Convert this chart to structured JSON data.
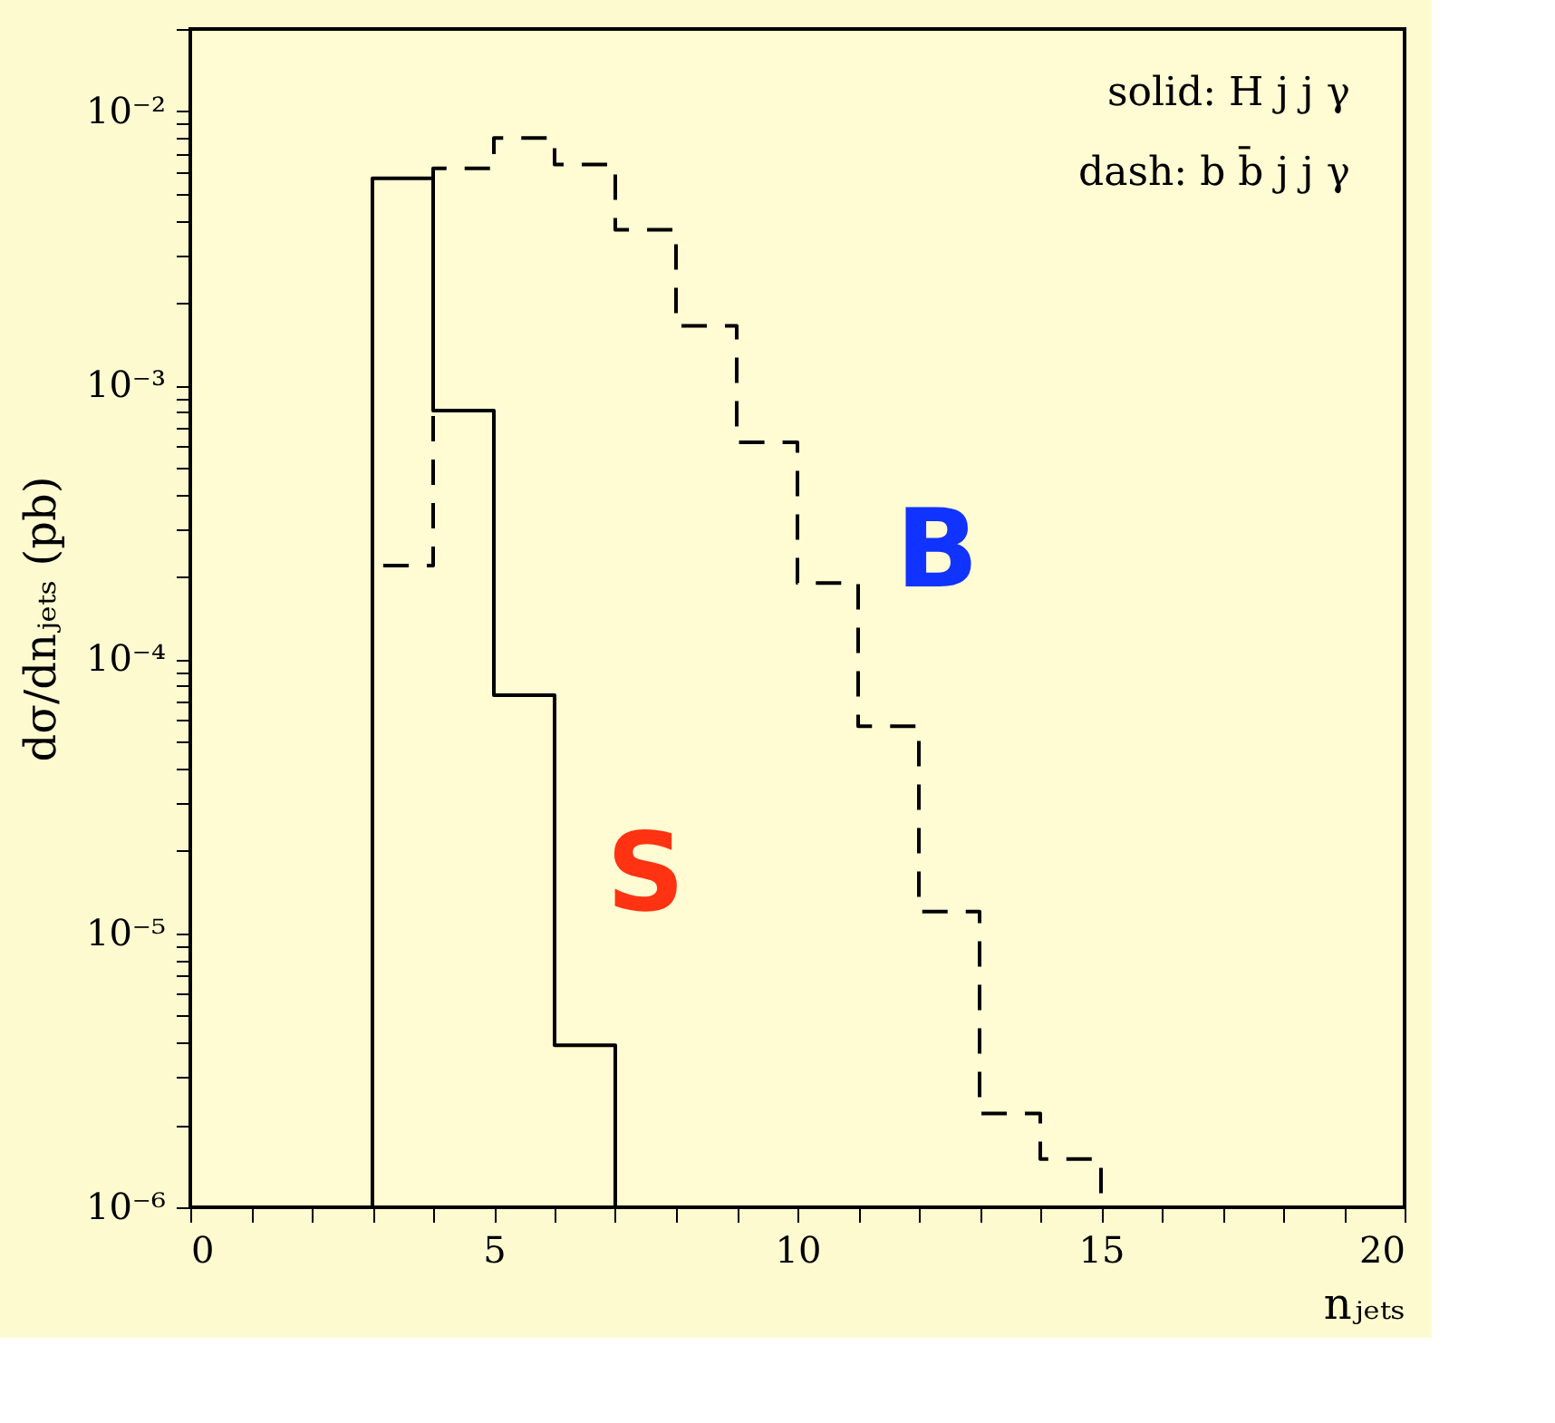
{
  "chart_data": {
    "type": "histogram",
    "xlabel": "nⱼₑₜₛ",
    "ylabel": "dσ/dnⱼₑₜₛ (pb)",
    "bins": [
      3,
      4,
      5,
      6,
      7,
      8,
      9,
      10,
      11,
      12,
      13,
      14,
      15
    ],
    "series": [
      {
        "color": "#000000",
        "line_style": "solid",
        "bins": [
          3,
          4,
          5,
          6,
          7
        ],
        "values": [
          0.0057,
          0.00081,
          7.4e-05,
          3.9e-06
        ]
      },
      {
        "color": "#000000",
        "line_style": "dashed",
        "values": [
          0.00022,
          0.0062,
          0.008,
          0.0064,
          0.0037,
          0.00165,
          0.00062,
          0.00019,
          5.7e-05,
          1.2e-05,
          2.2e-06,
          1.5e-06
        ]
      }
    ],
    "log": "y",
    "xlim": [
      0,
      20
    ],
    "ylim": [
      1e-06,
      0.02
    ],
    "xticks": [
      0,
      {
        "value": 1,
        "label": null
      },
      {
        "value": 2,
        "label": null
      },
      {
        "value": 3,
        "label": null
      },
      {
        "value": 4,
        "label": null
      },
      5,
      {
        "value": 6,
        "label": null
      },
      {
        "value": 7,
        "label": null
      },
      {
        "value": 8,
        "label": null
      },
      {
        "value": 9,
        "label": null
      },
      10,
      {
        "value": 11,
        "label": null
      },
      {
        "value": 12,
        "label": null
      },
      {
        "value": 13,
        "label": null
      },
      {
        "value": 14,
        "label": null
      },
      15,
      {
        "value": 16,
        "label": null
      },
      {
        "value": 17,
        "label": null
      },
      {
        "value": 18,
        "label": null
      },
      {
        "value": 19,
        "label": null
      },
      20
    ],
    "yticks": [
      {
        "value": 1e-06,
        "label": "10⁻⁶"
      },
      {
        "value": 2e-06,
        "label": null
      },
      {
        "value": 3e-06,
        "label": null
      },
      {
        "value": 4e-06,
        "label": null
      },
      {
        "value": 5e-06,
        "label": null
      },
      {
        "value": 6e-06,
        "label": null
      },
      {
        "value": 7e-06,
        "label": null
      },
      {
        "value": 8e-06,
        "label": null
      },
      {
        "value": 9e-06,
        "label": null
      },
      {
        "value": 1e-05,
        "label": "10⁻⁵"
      },
      {
        "value": 2e-05,
        "label": null
      },
      {
        "value": 3e-05,
        "label": null
      },
      {
        "value": 4e-05,
        "label": null
      },
      {
        "value": 5e-05,
        "label": null
      },
      {
        "value": 6e-05,
        "label": null
      },
      {
        "value": 7e-05,
        "label": null
      },
      {
        "value": 8e-05,
        "label": null
      },
      {
        "value": 9e-05,
        "label": null
      },
      {
        "value": 0.0001,
        "label": "10⁻⁴"
      },
      {
        "value": 0.0002,
        "label": null
      },
      {
        "value": 0.0003,
        "label": null
      },
      {
        "value": 0.0004,
        "label": null
      },
      {
        "value": 0.0005,
        "label": null
      },
      {
        "value": 0.0006,
        "label": null
      },
      {
        "value": 0.0007,
        "label": null
      },
      {
        "value": 0.0008,
        "label": null
      },
      {
        "value": 0.0009,
        "label": null
      },
      {
        "value": 0.001,
        "label": "10⁻³"
      },
      {
        "value": 0.002,
        "label": null
      },
      {
        "value": 0.003,
        "label": null
      },
      {
        "value": 0.004,
        "label": null
      },
      {
        "value": 0.005,
        "label": null
      },
      {
        "value": 0.006,
        "label": null
      },
      {
        "value": 0.007,
        "label": null
      },
      {
        "value": 0.008,
        "label": null
      },
      {
        "value": 0.009,
        "label": null
      },
      {
        "value": 0.01,
        "label": "10⁻²"
      },
      {
        "value": 0.02,
        "label": null
      }
    ],
    "grid": false,
    "annotations": [
      "solid: H j j γ",
      "dash: b b̄ j j γ",
      "S",
      "B"
    ]
  }
}
